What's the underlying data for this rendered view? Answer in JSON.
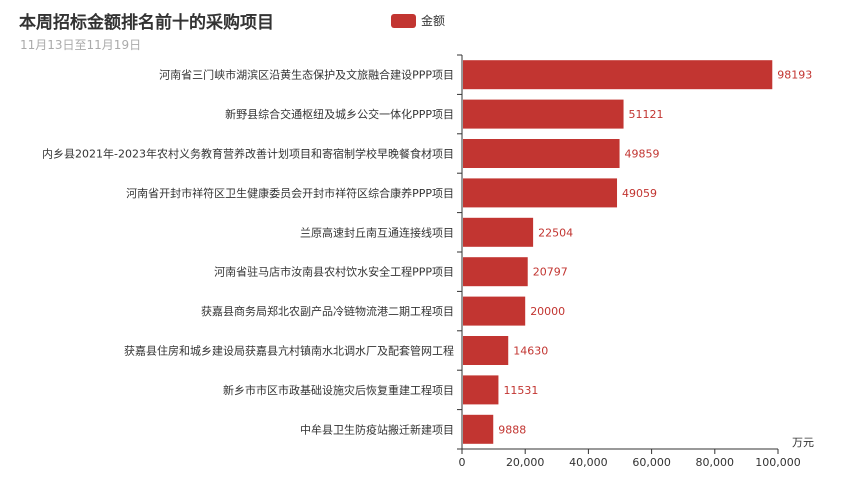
{
  "chart_data": {
    "type": "bar",
    "orientation": "horizontal",
    "title": "本周招标金额排名前十的采购项目",
    "subtitle": "11月13日至11月19日",
    "unit_label": "万元",
    "legend_position": "top",
    "series": [
      {
        "name": "金额",
        "color": "#c23531",
        "values": [
          98193,
          51121,
          49859,
          49059,
          22504,
          20797,
          20000,
          14630,
          11531,
          9888
        ]
      }
    ],
    "categories": [
      "河南省三门峡市湖滨区沿黄生态保护及文旅融合建设PPP项目",
      "新野县综合交通枢纽及城乡公交一体化PPP项目",
      "内乡县2021年-2023年农村义务教育营养改善计划项目和寄宿制学校早晚餐食材项目",
      "河南省开封市祥符区卫生健康委员会开封市祥符区综合康养PPP项目",
      "兰原高速封丘南互通连接线项目",
      "河南省驻马店市汝南县农村饮水安全工程PPP项目",
      "获嘉县商务局郑北农副产品冷链物流港二期工程项目",
      "获嘉县住房和城乡建设局获嘉县亢村镇南水北调水厂及配套管网工程",
      "新乡市市区市政基础设施灾后恢复重建工程项目",
      "中牟县卫生防疫站搬迁新建项目"
    ],
    "xlim": [
      0,
      100000
    ],
    "x_ticks": [
      "0",
      "20,000",
      "40,000",
      "60,000",
      "80,000",
      "100,000"
    ],
    "x_tick_values": [
      0,
      20000,
      40000,
      60000,
      80000,
      100000
    ],
    "grid": false
  }
}
